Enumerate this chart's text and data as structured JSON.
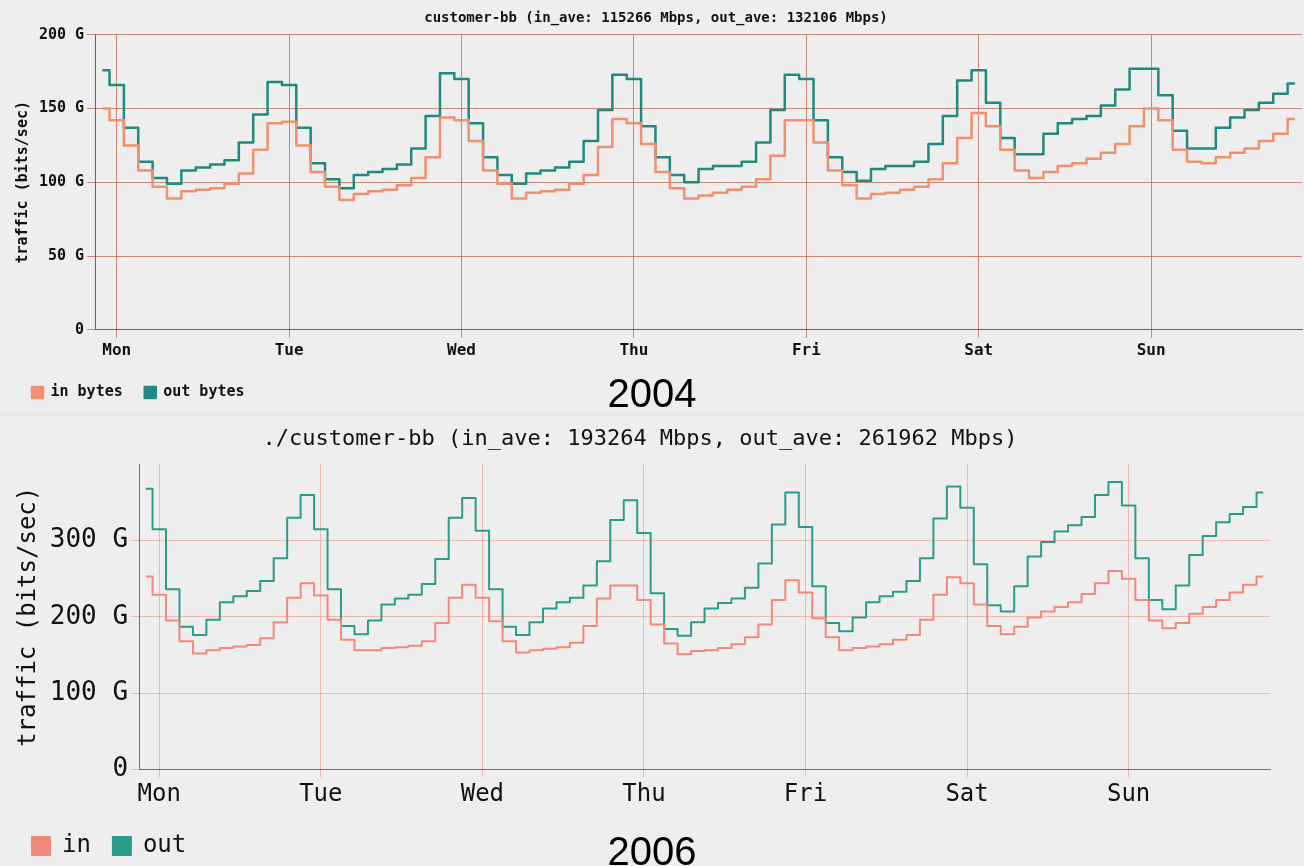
{
  "chart_data": [
    {
      "type": "step",
      "title": "customer-bb (in_ave: 115266 Mbps, out_ave: 132106 Mbps)",
      "ylabel": "traffic (bits/sec)",
      "annotations": [
        "2004"
      ],
      "categories": [
        null,
        "Mon",
        null,
        null,
        null,
        null,
        null,
        null,
        null,
        null,
        null,
        null,
        null,
        "Tue",
        null,
        null,
        null,
        null,
        null,
        null,
        null,
        null,
        null,
        null,
        null,
        "Wed",
        null,
        null,
        null,
        null,
        null,
        null,
        null,
        null,
        null,
        null,
        null,
        "Thu",
        null,
        null,
        null,
        null,
        null,
        null,
        null,
        null,
        null,
        null,
        null,
        "Fri",
        null,
        null,
        null,
        null,
        null,
        null,
        null,
        null,
        null,
        null,
        null,
        "Sat",
        null,
        null,
        null,
        null,
        null,
        null,
        null,
        null,
        null,
        null,
        null,
        "Sun",
        null,
        null,
        null,
        null,
        null,
        null,
        null,
        null,
        null,
        null
      ],
      "series": [
        {
          "name": "in bytes",
          "color": "#f0906c",
          "values": [
            150,
            142,
            125,
            108,
            97,
            89,
            94,
            95,
            96,
            99,
            106,
            122,
            140,
            141,
            125,
            107,
            97,
            88,
            92,
            94,
            95,
            98,
            103,
            117,
            144,
            142,
            128,
            108,
            99,
            89,
            93,
            94,
            95,
            99,
            105,
            124,
            143,
            140,
            126,
            107,
            96,
            89,
            91,
            93,
            95,
            97,
            102,
            118,
            142,
            142,
            127,
            108,
            98,
            89,
            92,
            93,
            95,
            97,
            102,
            113,
            130,
            147,
            138,
            122,
            108,
            103,
            107,
            111,
            113,
            116,
            120,
            126,
            138,
            150,
            142,
            122,
            114,
            113,
            117,
            120,
            123,
            128,
            133,
            143
          ]
        },
        {
          "name": "out bytes",
          "color": "#1f8a80",
          "values": [
            176,
            166,
            137,
            114,
            103,
            99,
            108,
            110,
            112,
            115,
            127,
            146,
            168,
            166,
            137,
            113,
            102,
            96,
            105,
            107,
            109,
            112,
            123,
            145,
            174,
            170,
            140,
            117,
            105,
            99,
            106,
            108,
            110,
            114,
            128,
            149,
            173,
            170,
            138,
            117,
            105,
            100,
            109,
            111,
            111,
            114,
            127,
            149,
            173,
            170,
            142,
            117,
            107,
            101,
            109,
            111,
            111,
            114,
            126,
            145,
            169,
            176,
            154,
            130,
            119,
            119,
            133,
            140,
            143,
            145,
            152,
            163,
            177,
            177,
            159,
            135,
            123,
            123,
            137,
            144,
            149,
            154,
            160,
            167
          ]
        }
      ],
      "ylim": [
        0,
        200
      ],
      "yticks": [
        0,
        {
          "value": 50,
          "label": "50 G"
        },
        {
          "value": 100,
          "label": "100 G"
        },
        {
          "value": 150,
          "label": "150 G"
        },
        {
          "value": 200,
          "label": "200 G"
        }
      ],
      "grid": true,
      "legend": "bottom left"
    },
    {
      "type": "step",
      "title": "./customer-bb (in_ave: 193264 Mbps, out_ave: 261962 Mbps)",
      "ylabel": "traffic (bits/sec)",
      "annotations": [
        "2006"
      ],
      "categories": [
        null,
        "Mon",
        null,
        null,
        null,
        null,
        null,
        null,
        null,
        null,
        null,
        null,
        null,
        "Tue",
        null,
        null,
        null,
        null,
        null,
        null,
        null,
        null,
        null,
        null,
        null,
        "Wed",
        null,
        null,
        null,
        null,
        null,
        null,
        null,
        null,
        null,
        null,
        null,
        "Thu",
        null,
        null,
        null,
        null,
        null,
        null,
        null,
        null,
        null,
        null,
        null,
        "Fri",
        null,
        null,
        null,
        null,
        null,
        null,
        null,
        null,
        null,
        null,
        null,
        "Sat",
        null,
        null,
        null,
        null,
        null,
        null,
        null,
        null,
        null,
        null,
        null,
        "Sun",
        null,
        null,
        null,
        null,
        null,
        null,
        null,
        null,
        null,
        null
      ],
      "series": [
        {
          "name": "in",
          "color": "#f2887a",
          "values": [
            253,
            229,
            195,
            168,
            152,
            156,
            159,
            161,
            163,
            172,
            193,
            225,
            244,
            228,
            196,
            170,
            156,
            156,
            159,
            160,
            162,
            168,
            192,
            225,
            242,
            225,
            194,
            168,
            153,
            156,
            158,
            160,
            166,
            188,
            224,
            241,
            241,
            222,
            190,
            165,
            151,
            155,
            156,
            159,
            164,
            173,
            190,
            222,
            248,
            232,
            198,
            173,
            156,
            159,
            161,
            164,
            170,
            176,
            196,
            229,
            252,
            244,
            216,
            188,
            177,
            187,
            199,
            207,
            213,
            219,
            230,
            244,
            260,
            250,
            222,
            195,
            185,
            192,
            204,
            213,
            222,
            232,
            242,
            253
          ]
        },
        {
          "name": "out",
          "color": "#2a9d8a",
          "values": [
            368,
            315,
            236,
            187,
            176,
            196,
            219,
            227,
            234,
            247,
            277,
            330,
            360,
            315,
            236,
            188,
            177,
            195,
            216,
            224,
            229,
            243,
            276,
            330,
            356,
            313,
            236,
            187,
            176,
            193,
            211,
            219,
            225,
            241,
            273,
            327,
            353,
            310,
            231,
            184,
            175,
            193,
            211,
            218,
            224,
            238,
            270,
            321,
            363,
            318,
            240,
            192,
            181,
            199,
            219,
            227,
            233,
            247,
            277,
            329,
            371,
            343,
            269,
            215,
            207,
            240,
            279,
            298,
            312,
            320,
            331,
            360,
            377,
            346,
            277,
            222,
            210,
            241,
            281,
            306,
            324,
            335,
            344,
            363
          ]
        }
      ],
      "ylim": [
        0,
        400
      ],
      "yticks": [
        0,
        {
          "value": 100,
          "label": "100 G"
        },
        {
          "value": 200,
          "label": "200 G"
        },
        {
          "value": 300,
          "label": "300 G"
        }
      ],
      "grid": true,
      "legend": "bottom left"
    }
  ]
}
